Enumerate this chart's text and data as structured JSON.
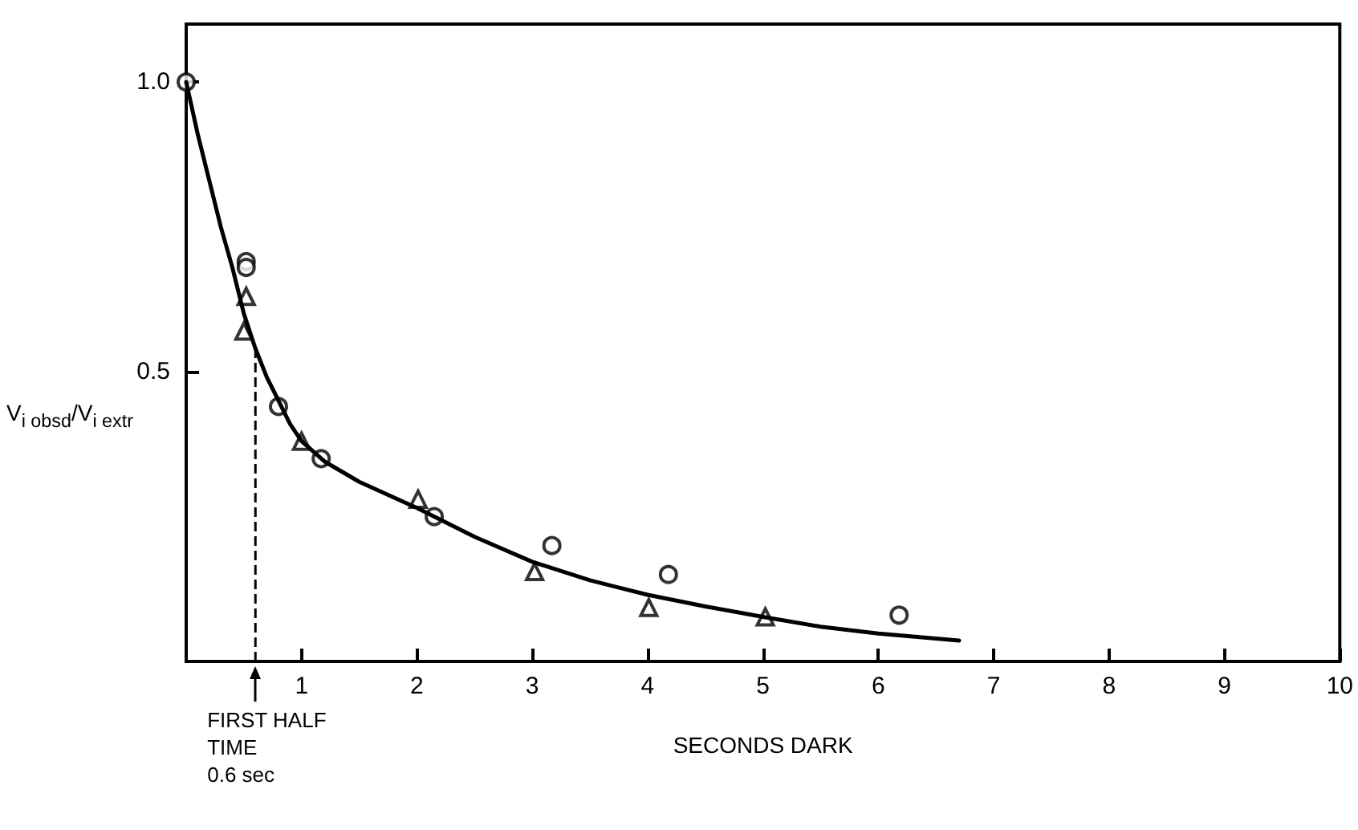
{
  "chart_data": {
    "type": "scatter",
    "xlabel": "SECONDS DARK",
    "ylabel": "V$_{i obsd}$/V$_{i extr}$",
    "xlim": [
      0,
      10
    ],
    "ylim": [
      0,
      1.1
    ],
    "xticks": [
      1,
      2,
      3,
      4,
      5,
      6,
      7,
      8,
      9,
      10
    ],
    "yticks": [
      {
        "value": 0.5,
        "label": "0.5"
      },
      {
        "value": 1,
        "label": "1.0"
      }
    ],
    "grid": false,
    "series": [
      {
        "marker": "circle",
        "color": "#000000",
        "x": [
          0,
          0.52,
          0.52,
          0.8,
          1.17,
          2.15,
          3.17,
          4.18,
          6.18
        ],
        "values": [
          1.0,
          0.69,
          0.68,
          0.44,
          0.35,
          0.25,
          0.2,
          0.15,
          0.08
        ]
      },
      {
        "marker": "triangle",
        "color": "#000000",
        "x": [
          0.52,
          0.5,
          1.0,
          2.01,
          3.02,
          4.01,
          5.02
        ],
        "values": [
          0.63,
          0.57,
          0.38,
          0.28,
          0.155,
          0.093,
          0.077
        ]
      },
      {
        "type": "line",
        "marker": "none",
        "line_style": "solid",
        "color": "#000000",
        "x": [
          0,
          0.1,
          0.2,
          0.3,
          0.4,
          0.5,
          0.6,
          0.7,
          0.8,
          0.9,
          1,
          1.2,
          1.5,
          2,
          2.5,
          3,
          3.5,
          4,
          4.5,
          5,
          5.5,
          6,
          6.7
        ],
        "values": [
          1.0,
          0.91,
          0.83,
          0.75,
          0.68,
          0.6,
          0.54,
          0.49,
          0.45,
          0.41,
          0.38,
          0.345,
          0.31,
          0.265,
          0.215,
          0.172,
          0.14,
          0.115,
          0.095,
          0.077,
          0.06,
          0.048,
          0.036
        ]
      }
    ],
    "ref_lines": [
      {
        "axis": "x",
        "value": 0.6,
        "line_style": "dashed",
        "color": "#000000"
      }
    ],
    "annotations": [
      {
        "text": "FIRST HALF\nTIME\n0.6 sec",
        "x": 0.6,
        "y": 0
      }
    ]
  }
}
